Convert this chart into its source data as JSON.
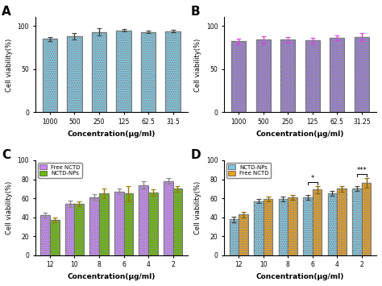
{
  "A": {
    "label": "A",
    "categories": [
      "1000",
      "500",
      "250",
      "125",
      "62.5",
      "31.5"
    ],
    "values": [
      85,
      88,
      93,
      95,
      93,
      94
    ],
    "errors": [
      2.5,
      3.5,
      4.5,
      1.5,
      1.5,
      1.5
    ],
    "bar_color": "#7EC8E3",
    "error_color": "#444444",
    "ylabel": "Cell viability(%)",
    "xlabel": "Concentration(μg/ml)",
    "ylim": [
      0,
      110
    ],
    "yticks": [
      0,
      50,
      100
    ]
  },
  "B": {
    "label": "B",
    "categories": [
      "1000",
      "500",
      "250",
      "125",
      "62.5",
      "31.25"
    ],
    "values": [
      82,
      84,
      84,
      83,
      86,
      87
    ],
    "errors": [
      3,
      4,
      3,
      3.5,
      3,
      5
    ],
    "bar_color": "#9B7FD4",
    "error_color": "#DD44DD",
    "ylabel": "Cell viability(%)",
    "xlabel": "Concentration(μg/ml)",
    "ylim": [
      0,
      110
    ],
    "yticks": [
      0,
      50,
      100
    ]
  },
  "C": {
    "label": "C",
    "categories": [
      "12",
      "10",
      "8",
      "6",
      "4",
      "2"
    ],
    "values_free": [
      42,
      54,
      61,
      67,
      74,
      78
    ],
    "errors_free": [
      2.5,
      3.5,
      3,
      3,
      3.5,
      3
    ],
    "values_nps": [
      37,
      54,
      65,
      65,
      66,
      70
    ],
    "errors_nps": [
      2.5,
      2.5,
      5,
      8,
      3,
      3
    ],
    "color_free": "#CC88FF",
    "color_nps": "#66BB00",
    "error_color_free": "#888888",
    "error_color_nps": "#997700",
    "ylabel": "Cell viability(%)",
    "xlabel": "Concentration(μg/ml)",
    "ylim": [
      0,
      100
    ],
    "yticks": [
      0,
      20,
      40,
      60,
      80,
      100
    ],
    "legend_free": "Free NCTD",
    "legend_nps": "NCTD-NPs"
  },
  "D": {
    "label": "D",
    "categories": [
      "12",
      "10",
      "8",
      "6",
      "4",
      "2"
    ],
    "values_nps": [
      38,
      57,
      59,
      61,
      65,
      70
    ],
    "errors_nps": [
      3,
      2,
      2.5,
      2.5,
      2.5,
      2.5
    ],
    "values_free": [
      43,
      59,
      61,
      69,
      70,
      76
    ],
    "errors_free": [
      3,
      2.5,
      2.5,
      3.5,
      3,
      5
    ],
    "color_nps": "#7EC8E3",
    "color_free": "#E8A020",
    "error_color_nps": "#444444",
    "error_color_free": "#886600",
    "ylabel": "Cell viability(%)",
    "xlabel": "Concentration(μg/ml)",
    "ylim": [
      0,
      100
    ],
    "yticks": [
      0,
      20,
      40,
      60,
      80,
      100
    ],
    "legend_nps": "NCTD-NPs",
    "legend_free": "Free NCTD",
    "sig_indices": [
      3,
      5
    ],
    "sig_labels": [
      "*",
      "***"
    ]
  }
}
